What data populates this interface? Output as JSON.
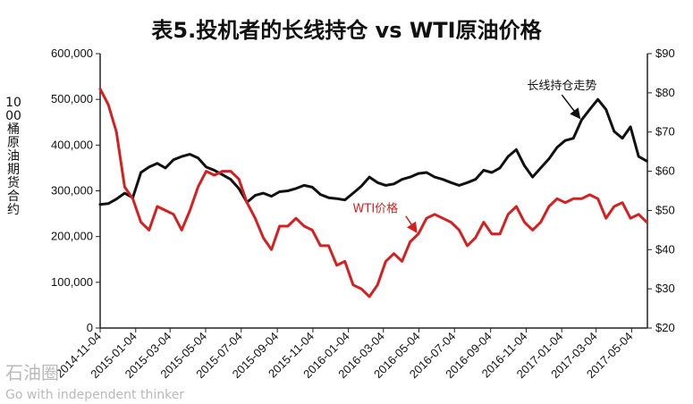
{
  "title": "表5.投机者的长线持仓 vs WTI原油价格",
  "watermark": {
    "logo": "石油圈",
    "sub": "Go with independent thinker"
  },
  "chart_data": {
    "type": "line",
    "title": "表5.投机者的长线持仓 vs WTI原油价格",
    "ylabel_left": "1000桶原油期货合约",
    "y_left_ticks": [
      "600,000",
      "500,000",
      "400,000",
      "300,000",
      "200,000",
      "100,000",
      "0"
    ],
    "y_left_range": [
      0,
      600000
    ],
    "y_right_ticks": [
      "$90",
      "$80",
      "$70",
      "$60",
      "$50",
      "$40",
      "$30",
      "$20"
    ],
    "y_right_range": [
      20,
      90
    ],
    "x_ticks": [
      "2014-11-04",
      "2015-01-04",
      "2015-03-04",
      "2015-05-04",
      "2015-07-04",
      "2015-09-04",
      "2015-11-04",
      "2016-01-04",
      "2016-03-04",
      "2016-05-04",
      "2016-07-04",
      "2016-09-04",
      "2016-11-04",
      "2017-01-04",
      "2017-03-04",
      "2017-05-04"
    ],
    "x_range": [
      "2014-11-04",
      "2017-05-31"
    ],
    "grid": false,
    "annotations": [
      {
        "text": "长线持仓走势",
        "series": "long_positions"
      },
      {
        "text": "WTI价格",
        "series": "wti_price"
      }
    ],
    "series": [
      {
        "name": "长线持仓走势",
        "key": "long_positions",
        "axis": "left",
        "color": "#111111",
        "points": [
          [
            "2014-11-04",
            270000
          ],
          [
            "2014-11-18",
            272000
          ],
          [
            "2014-12-02",
            282000
          ],
          [
            "2014-12-16",
            295000
          ],
          [
            "2014-12-30",
            285000
          ],
          [
            "2015-01-13",
            340000
          ],
          [
            "2015-01-27",
            352000
          ],
          [
            "2015-02-10",
            360000
          ],
          [
            "2015-02-24",
            350000
          ],
          [
            "2015-03-10",
            368000
          ],
          [
            "2015-03-24",
            375000
          ],
          [
            "2015-04-07",
            380000
          ],
          [
            "2015-04-21",
            372000
          ],
          [
            "2015-05-05",
            352000
          ],
          [
            "2015-05-19",
            345000
          ],
          [
            "2015-06-02",
            335000
          ],
          [
            "2015-06-16",
            325000
          ],
          [
            "2015-06-30",
            305000
          ],
          [
            "2015-07-14",
            275000
          ],
          [
            "2015-07-28",
            290000
          ],
          [
            "2015-08-11",
            295000
          ],
          [
            "2015-08-25",
            288000
          ],
          [
            "2015-09-08",
            298000
          ],
          [
            "2015-09-22",
            300000
          ],
          [
            "2015-10-06",
            305000
          ],
          [
            "2015-10-20",
            312000
          ],
          [
            "2015-11-03",
            308000
          ],
          [
            "2015-11-17",
            292000
          ],
          [
            "2015-12-01",
            285000
          ],
          [
            "2015-12-15",
            283000
          ],
          [
            "2015-12-29",
            280000
          ],
          [
            "2016-01-12",
            295000
          ],
          [
            "2016-01-26",
            310000
          ],
          [
            "2016-02-09",
            330000
          ],
          [
            "2016-02-23",
            318000
          ],
          [
            "2016-03-08",
            312000
          ],
          [
            "2016-03-22",
            315000
          ],
          [
            "2016-04-05",
            325000
          ],
          [
            "2016-04-19",
            330000
          ],
          [
            "2016-05-03",
            338000
          ],
          [
            "2016-05-17",
            340000
          ],
          [
            "2016-05-31",
            330000
          ],
          [
            "2016-06-14",
            325000
          ],
          [
            "2016-06-28",
            318000
          ],
          [
            "2016-07-12",
            312000
          ],
          [
            "2016-07-26",
            318000
          ],
          [
            "2016-08-09",
            325000
          ],
          [
            "2016-08-23",
            345000
          ],
          [
            "2016-09-06",
            340000
          ],
          [
            "2016-09-20",
            350000
          ],
          [
            "2016-10-04",
            375000
          ],
          [
            "2016-10-18",
            390000
          ],
          [
            "2016-11-01",
            355000
          ],
          [
            "2016-11-15",
            330000
          ],
          [
            "2016-11-29",
            350000
          ],
          [
            "2016-12-13",
            370000
          ],
          [
            "2016-12-27",
            395000
          ],
          [
            "2017-01-10",
            410000
          ],
          [
            "2017-01-24",
            415000
          ],
          [
            "2017-02-07",
            455000
          ],
          [
            "2017-02-21",
            478000
          ],
          [
            "2017-03-07",
            500000
          ],
          [
            "2017-03-21",
            478000
          ],
          [
            "2017-04-04",
            430000
          ],
          [
            "2017-04-18",
            415000
          ],
          [
            "2017-05-02",
            440000
          ],
          [
            "2017-05-16",
            375000
          ],
          [
            "2017-05-30",
            365000
          ]
        ]
      },
      {
        "name": "WTI价格",
        "key": "wti_price",
        "axis": "right",
        "color": "#d42020",
        "points": [
          [
            "2014-11-04",
            81
          ],
          [
            "2014-11-18",
            77
          ],
          [
            "2014-12-02",
            70
          ],
          [
            "2014-12-16",
            56
          ],
          [
            "2014-12-30",
            53
          ],
          [
            "2015-01-13",
            47
          ],
          [
            "2015-01-27",
            45
          ],
          [
            "2015-02-10",
            51
          ],
          [
            "2015-02-24",
            50
          ],
          [
            "2015-03-10",
            49
          ],
          [
            "2015-03-24",
            45
          ],
          [
            "2015-04-07",
            50
          ],
          [
            "2015-04-21",
            56
          ],
          [
            "2015-05-05",
            60
          ],
          [
            "2015-05-19",
            59
          ],
          [
            "2015-06-02",
            60
          ],
          [
            "2015-06-16",
            60
          ],
          [
            "2015-06-30",
            58
          ],
          [
            "2015-07-14",
            52
          ],
          [
            "2015-07-28",
            48
          ],
          [
            "2015-08-11",
            43
          ],
          [
            "2015-08-25",
            40
          ],
          [
            "2015-09-08",
            46
          ],
          [
            "2015-09-22",
            46
          ],
          [
            "2015-10-06",
            48
          ],
          [
            "2015-10-20",
            46
          ],
          [
            "2015-11-03",
            45
          ],
          [
            "2015-11-17",
            41
          ],
          [
            "2015-12-01",
            41
          ],
          [
            "2015-12-15",
            36
          ],
          [
            "2015-12-29",
            37
          ],
          [
            "2016-01-12",
            31
          ],
          [
            "2016-01-26",
            30
          ],
          [
            "2016-02-09",
            28
          ],
          [
            "2016-02-23",
            31
          ],
          [
            "2016-03-08",
            37
          ],
          [
            "2016-03-22",
            39
          ],
          [
            "2016-04-05",
            37
          ],
          [
            "2016-04-19",
            42
          ],
          [
            "2016-05-03",
            44
          ],
          [
            "2016-05-17",
            48
          ],
          [
            "2016-05-31",
            49
          ],
          [
            "2016-06-14",
            48
          ],
          [
            "2016-06-28",
            47
          ],
          [
            "2016-07-12",
            45
          ],
          [
            "2016-07-26",
            41
          ],
          [
            "2016-08-09",
            43
          ],
          [
            "2016-08-23",
            47
          ],
          [
            "2016-09-06",
            44
          ],
          [
            "2016-09-20",
            44
          ],
          [
            "2016-10-04",
            49
          ],
          [
            "2016-10-18",
            51
          ],
          [
            "2016-11-01",
            47
          ],
          [
            "2016-11-15",
            45
          ],
          [
            "2016-11-29",
            47
          ],
          [
            "2016-12-13",
            51
          ],
          [
            "2016-12-27",
            53
          ],
          [
            "2017-01-10",
            52
          ],
          [
            "2017-01-24",
            53
          ],
          [
            "2017-02-07",
            53
          ],
          [
            "2017-02-21",
            54
          ],
          [
            "2017-03-07",
            53
          ],
          [
            "2017-03-21",
            48
          ],
          [
            "2017-04-04",
            51
          ],
          [
            "2017-04-18",
            52
          ],
          [
            "2017-05-02",
            48
          ],
          [
            "2017-05-16",
            49
          ],
          [
            "2017-05-30",
            47
          ]
        ]
      }
    ]
  }
}
